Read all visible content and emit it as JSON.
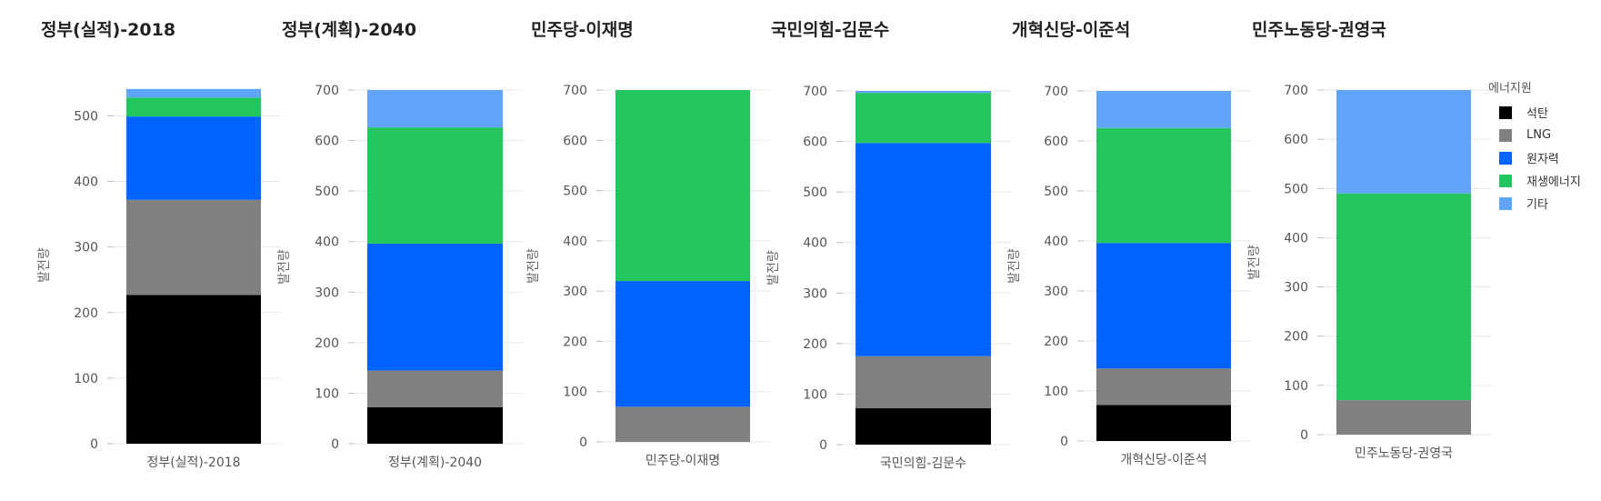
{
  "chart_data": {
    "type": "bar",
    "stacked": true,
    "ylabel": "발전량",
    "legend": {
      "title": "에너지원",
      "placement": "right",
      "entries": [
        {
          "name": "석탄",
          "color": "#000000"
        },
        {
          "name": "LNG",
          "color": "#808080"
        },
        {
          "name": "원자력",
          "color": "#0063ff"
        },
        {
          "name": "재생에너지",
          "color": "#22c55e"
        },
        {
          "name": "기타",
          "color": "#60a5fa"
        }
      ]
    },
    "charts": [
      {
        "title": "정부(실적)-2018",
        "category": "정부(실적)-2018",
        "ylim": [
          0,
          545
        ],
        "yticks": [
          0,
          100,
          200,
          300,
          400,
          500
        ],
        "values": {
          "석탄": 227,
          "LNG": 145,
          "원자력": 127,
          "재생에너지": 29,
          "기타": 13
        }
      },
      {
        "title": "정부(계획)-2040",
        "category": "정부(계획)-2040",
        "ylim": [
          0,
          700
        ],
        "yticks": [
          0,
          100,
          200,
          300,
          400,
          500,
          600,
          700
        ],
        "values": {
          "석탄": 72,
          "LNG": 73,
          "원자력": 251,
          "재생에너지": 230,
          "기타": 74
        }
      },
      {
        "title": "민주당-이재명",
        "category": "민주당-이재명",
        "ylim": [
          0,
          700
        ],
        "yticks": [
          0,
          100,
          200,
          300,
          400,
          500,
          600,
          700
        ],
        "values": {
          "석탄": 0,
          "LNG": 70,
          "원자력": 250,
          "재생에너지": 380,
          "기타": 0
        }
      },
      {
        "title": "국민의힘-김문수",
        "category": "국민의힘-김문수",
        "ylim": [
          0,
          700
        ],
        "yticks": [
          0,
          100,
          200,
          300,
          400,
          500,
          600,
          700
        ],
        "values": {
          "석탄": 72,
          "LNG": 103,
          "원자력": 422,
          "재생에너지": 99,
          "기타": 4
        }
      },
      {
        "title": "개혁신당-이준석",
        "category": "개혁신당-이준석",
        "ylim": [
          0,
          700
        ],
        "yticks": [
          0,
          100,
          200,
          300,
          400,
          500,
          600,
          700
        ],
        "values": {
          "석탄": 72,
          "LNG": 73,
          "원자력": 251,
          "재생에너지": 230,
          "기타": 74
        }
      },
      {
        "title": "민주노동당-권영국",
        "category": "민주노동당-권영국",
        "ylim": [
          0,
          700
        ],
        "yticks": [
          0,
          100,
          200,
          300,
          400,
          500,
          600,
          700
        ],
        "values": {
          "석탄": 0,
          "LNG": 70,
          "원자력": 0,
          "재생에너지": 420,
          "기타": 210
        }
      }
    ]
  }
}
